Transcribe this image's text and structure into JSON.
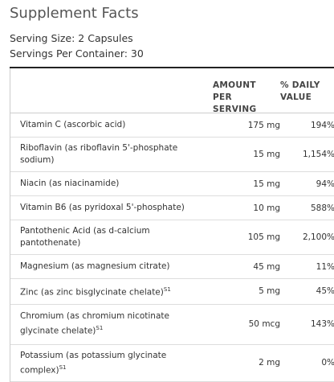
{
  "header": {
    "title": "Supplement Facts",
    "serving_size": "Serving Size: 2 Capsules",
    "servings_per_container": "Servings Per Container: 30"
  },
  "table": {
    "columns": [
      "AMOUNT PER SERVING",
      "% DAILY VALUE"
    ],
    "rows": [
      {
        "name": "Vitamin C (ascorbic acid)",
        "amount": "175 mg",
        "daily_value": "194%"
      },
      {
        "name": "Riboflavin (as riboflavin 5'-phosphate sodium)",
        "amount": "15 mg",
        "daily_value": "1,154%"
      },
      {
        "name": "Niacin (as niacinamide)",
        "amount": "15 mg",
        "daily_value": "94%"
      },
      {
        "name": "Vitamin B6 (as pyridoxal 5'-phosphate)",
        "amount": "10 mg",
        "daily_value": "588%"
      },
      {
        "name": "Pantothenic Acid (as d-calcium pantothenate)",
        "amount": "105 mg",
        "daily_value": "2,100%"
      },
      {
        "name": "Magnesium (as magnesium citrate)",
        "amount": "45 mg",
        "daily_value": "11%"
      },
      {
        "name": "Zinc (as zinc bisglycinate chelate)",
        "sup": "S1",
        "amount": "5 mg",
        "daily_value": "45%"
      },
      {
        "name": "Chromium (as chromium nicotinate glycinate chelate)",
        "sup": "S1",
        "amount": "50 mcg",
        "daily_value": "143%"
      },
      {
        "name": "Potassium (as potassium glycinate complex)",
        "sup": "S1",
        "amount": "2 mg",
        "daily_value": "0%"
      }
    ]
  }
}
